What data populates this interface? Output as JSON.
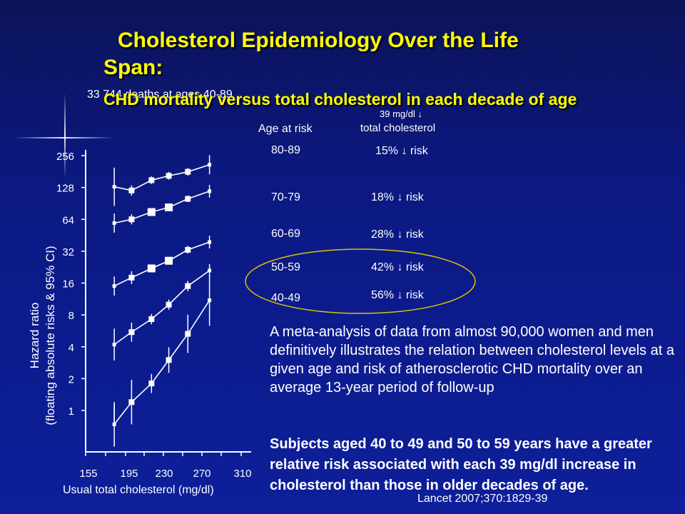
{
  "title": {
    "line1": "Cholesterol Epidemiology Over the Life",
    "line2": "Span:"
  },
  "subtitle": "CHD mortality versus total cholesterol in each decade of age",
  "deaths_note": "33 744 deaths at ages 40-89",
  "table_header": {
    "age": "Age at risk",
    "mg": "39 mg/dl ↓",
    "tc": "total cholesterol"
  },
  "rows": [
    {
      "age": "80-89",
      "risk": "15% ↓ risk"
    },
    {
      "age": "70-79",
      "risk": "18% ↓ risk"
    },
    {
      "age": "60-69",
      "risk": "28% ↓ risk"
    },
    {
      "age": "50-59",
      "risk": "42% ↓ risk"
    },
    {
      "age": "40-49",
      "risk": "56% ↓ risk"
    }
  ],
  "paragraph": "A meta-analysis of data from almost 90,000 women and men definitively illustrates the relation between cholesterol levels at a given age and risk of atherosclerotic CHD mortality over an average 13-year period of follow-up",
  "bold_paragraph": "Subjects aged 40 to 49 and 50 to 59 years have a greater relative risk associated with each 39 mg/dl increase in cholesterol than those in older decades of age.",
  "citation": "Lancet 2007;370:1829-39",
  "colors": {
    "title": "#ffff00",
    "text": "#ffffff",
    "ellipse": "#d9c200",
    "background": "#0c1a86"
  },
  "chart_data": {
    "type": "line",
    "ylabel_line1": "Hazard ratio",
    "ylabel_line2": "(floating absolute risks & 95% CI)",
    "xlabel": "Usual total cholesterol (mg/dl)",
    "x_ticks": [
      155,
      195,
      230,
      270,
      310
    ],
    "y_ticks": [
      1,
      2,
      4,
      8,
      16,
      32,
      64,
      128,
      256
    ],
    "y_scale": "log2",
    "series": [
      {
        "name": "80-89",
        "points": [
          [
            160,
            130
          ],
          [
            180,
            120
          ],
          [
            203,
            150
          ],
          [
            223,
            165
          ],
          [
            245,
            180
          ],
          [
            270,
            210
          ]
        ],
        "ci": [
          0.3,
          0.08,
          0.06,
          0.06,
          0.06,
          0.15
        ]
      },
      {
        "name": "70-79",
        "points": [
          [
            160,
            59
          ],
          [
            180,
            64
          ],
          [
            203,
            75
          ],
          [
            223,
            83
          ],
          [
            245,
            100
          ],
          [
            270,
            118
          ]
        ],
        "ci": [
          0.15,
          0.08,
          0.05,
          0.05,
          0.05,
          0.1
        ]
      },
      {
        "name": "60-69",
        "points": [
          [
            160,
            15
          ],
          [
            180,
            18
          ],
          [
            203,
            22
          ],
          [
            223,
            26
          ],
          [
            245,
            33
          ],
          [
            270,
            39
          ]
        ],
        "ci": [
          0.15,
          0.1,
          0.06,
          0.06,
          0.06,
          0.1
        ]
      },
      {
        "name": "50-59",
        "points": [
          [
            160,
            4.2
          ],
          [
            180,
            5.5
          ],
          [
            203,
            7.3
          ],
          [
            223,
            10
          ],
          [
            245,
            15
          ],
          [
            270,
            21
          ]
        ],
        "ci": [
          0.25,
          0.15,
          0.08,
          0.08,
          0.08,
          0.1
        ]
      },
      {
        "name": "40-49",
        "points": [
          [
            160,
            0.74
          ],
          [
            180,
            1.2
          ],
          [
            203,
            1.8
          ],
          [
            223,
            3.0
          ],
          [
            245,
            5.3
          ],
          [
            270,
            11
          ]
        ],
        "ci": [
          0.35,
          0.35,
          0.15,
          0.2,
          0.3,
          0.4
        ]
      }
    ],
    "annotation": "ellipse around 40-49 and 50-59 rows"
  }
}
